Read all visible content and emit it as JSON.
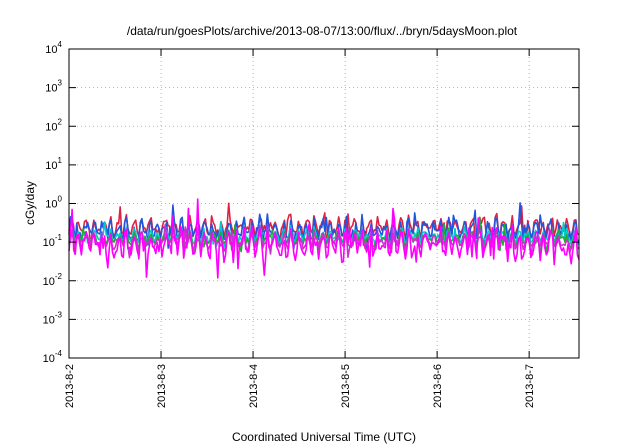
{
  "chart_data": {
    "type": "line",
    "title": "/data/run/goesPlots/archive/2013-08-07/13:00/flux/../bryn/5daysMoon.plot",
    "xlabel": "Coordinated Universal Time (UTC)",
    "ylabel": "cGy/day",
    "yscale": "log",
    "ylim": [
      0.0001,
      10000
    ],
    "y_ticks": [
      {
        "base": "10",
        "exp": "-4"
      },
      {
        "base": "10",
        "exp": "-3"
      },
      {
        "base": "10",
        "exp": "-2"
      },
      {
        "base": "10",
        "exp": "-1"
      },
      {
        "base": "10",
        "exp": "0"
      },
      {
        "base": "10",
        "exp": "1"
      },
      {
        "base": "10",
        "exp": "2"
      },
      {
        "base": "10",
        "exp": "3"
      },
      {
        "base": "10",
        "exp": "4"
      }
    ],
    "x_range": [
      "2013-08-02",
      "2013-08-07 13:00"
    ],
    "x_tick_labels": [
      "2013-8-2",
      "2013-8-3",
      "2013-8-4",
      "2013-8-5",
      "2013-8-6",
      "2013-8-7"
    ],
    "grid": true,
    "legend": "none",
    "series": [
      {
        "color": "#dd2244",
        "level": 0.25,
        "swing": 0.28
      },
      {
        "color": "#2255dd",
        "level": 0.21,
        "swing": 0.3
      },
      {
        "color": "#00cccc",
        "level": 0.145,
        "swing": 0.22
      },
      {
        "color": "#22aa33",
        "level": 0.12,
        "swing": 0.22
      },
      {
        "color": "#cc33cc",
        "level": 0.105,
        "swing": 0.22
      },
      {
        "color": "#ff00ff",
        "level": 0.085,
        "swing": 0.45
      }
    ]
  }
}
